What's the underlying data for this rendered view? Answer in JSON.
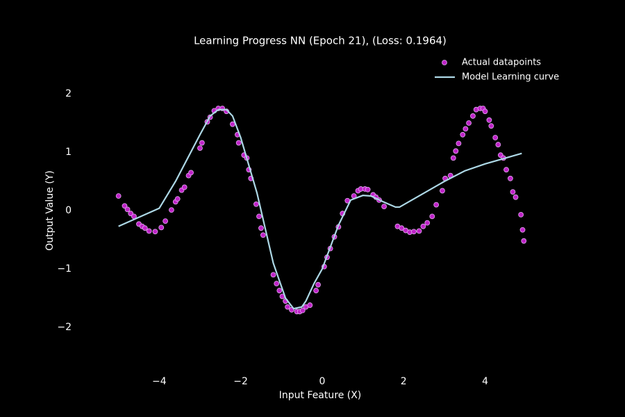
{
  "chart_data": {
    "type": "scatter",
    "title": "Learning Progress NN (Epoch 21), (Loss: 0.1964)",
    "x_label": "Input Feature (X)",
    "y_label": "Output Value (Y)",
    "xlim": [
      -6.0,
      5.9
    ],
    "ylim": [
      -2.75,
      2.75
    ],
    "xticks": [
      {
        "value": -4,
        "label": "−4"
      },
      {
        "value": -2,
        "label": "−2"
      },
      0,
      2,
      4
    ],
    "yticks": [
      {
        "value": -2,
        "label": "−2"
      },
      {
        "value": -1,
        "label": "−1"
      },
      0,
      1,
      2
    ],
    "grid": false,
    "legend": "upper right",
    "background": "#000000",
    "series": [
      {
        "name": "Actual datapoints",
        "type": "scatter",
        "color": "#c024c8",
        "edgecolor": "#e0a8f0",
        "x": [
          -5.0,
          -4.85,
          -4.78,
          -4.7,
          -4.62,
          -4.5,
          -4.42,
          -4.35,
          -4.25,
          -4.1,
          -3.95,
          -3.85,
          -3.7,
          -3.6,
          -3.55,
          -3.45,
          -3.38,
          -3.28,
          -3.22,
          -3.0,
          -2.95,
          -2.82,
          -2.75,
          -2.65,
          -2.55,
          -2.45,
          -2.35,
          -2.2,
          -2.08,
          -2.05,
          -1.92,
          -1.85,
          -1.8,
          -1.75,
          -1.62,
          -1.55,
          -1.5,
          -1.45,
          -1.2,
          -1.12,
          -1.05,
          -0.98,
          -0.9,
          -0.85,
          -0.75,
          -0.62,
          -0.55,
          -0.48,
          -0.4,
          -0.3,
          -0.15,
          -0.1,
          0.05,
          0.12,
          0.2,
          0.3,
          0.4,
          0.5,
          0.62,
          0.78,
          0.88,
          0.95,
          1.05,
          1.12,
          1.25,
          1.32,
          1.4,
          1.52,
          1.85,
          1.95,
          2.05,
          2.15,
          2.25,
          2.38,
          2.48,
          2.58,
          2.7,
          2.8,
          2.95,
          3.02,
          3.15,
          3.22,
          3.28,
          3.35,
          3.45,
          3.52,
          3.6,
          3.7,
          3.78,
          3.88,
          3.95,
          4.0,
          4.1,
          4.15,
          4.25,
          4.32,
          4.38,
          4.45,
          4.52,
          4.62,
          4.68,
          4.75,
          4.88,
          4.92,
          4.95
        ],
        "values": [
          0.25,
          0.08,
          0.02,
          -0.05,
          -0.1,
          -0.23,
          -0.27,
          -0.3,
          -0.35,
          -0.36,
          -0.29,
          -0.18,
          0.01,
          0.15,
          0.2,
          0.35,
          0.4,
          0.6,
          0.65,
          1.07,
          1.16,
          1.52,
          1.6,
          1.71,
          1.75,
          1.75,
          1.7,
          1.48,
          1.3,
          1.16,
          0.95,
          0.9,
          0.7,
          0.55,
          0.11,
          -0.1,
          -0.3,
          -0.42,
          -1.1,
          -1.25,
          -1.37,
          -1.47,
          -1.55,
          -1.65,
          -1.7,
          -1.73,
          -1.73,
          -1.71,
          -1.65,
          -1.62,
          -1.37,
          -1.27,
          -0.96,
          -0.8,
          -0.65,
          -0.45,
          -0.28,
          -0.05,
          0.17,
          0.25,
          0.34,
          0.37,
          0.37,
          0.36,
          0.27,
          0.23,
          0.18,
          0.07,
          -0.27,
          -0.3,
          -0.34,
          -0.37,
          -0.36,
          -0.35,
          -0.27,
          -0.21,
          -0.1,
          0.1,
          0.34,
          0.55,
          0.6,
          0.9,
          1.02,
          1.15,
          1.3,
          1.4,
          1.5,
          1.62,
          1.73,
          1.75,
          1.75,
          1.7,
          1.55,
          1.45,
          1.25,
          1.13,
          0.95,
          0.9,
          0.7,
          0.55,
          0.32,
          0.23,
          -0.07,
          -0.33,
          -0.52
        ]
      },
      {
        "name": "Model Learning curve",
        "type": "line",
        "color": "#add8e6",
        "x": [
          -5.0,
          -4.0,
          -3.6,
          -3.0,
          -2.75,
          -2.55,
          -2.35,
          -2.2,
          -2.0,
          -1.6,
          -1.2,
          -0.9,
          -0.7,
          -0.5,
          -0.4,
          -0.2,
          0.0,
          0.4,
          0.7,
          1.0,
          1.2,
          1.5,
          1.8,
          1.9,
          2.5,
          3.0,
          3.5,
          4.0,
          4.5,
          4.9
        ],
        "values": [
          -0.27,
          0.04,
          0.5,
          1.3,
          1.62,
          1.73,
          1.73,
          1.62,
          1.25,
          0.3,
          -0.9,
          -1.5,
          -1.68,
          -1.65,
          -1.55,
          -1.25,
          -1.0,
          -0.25,
          0.18,
          0.26,
          0.25,
          0.15,
          0.06,
          0.06,
          0.3,
          0.5,
          0.68,
          0.8,
          0.9,
          0.98
        ]
      }
    ]
  }
}
